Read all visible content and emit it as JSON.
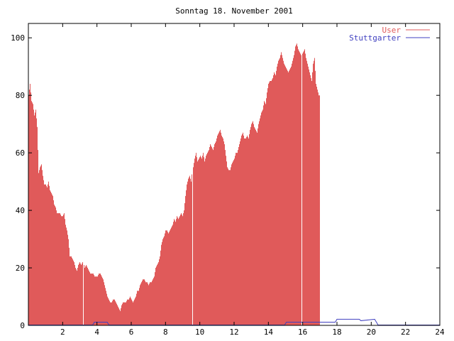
{
  "chart_data": {
    "type": "bar",
    "title": "Sonntag 18. November 2001",
    "xlabel": "",
    "ylabel": "",
    "xlim": [
      0,
      24
    ],
    "ylim": [
      0,
      105
    ],
    "x_ticks": [
      2,
      4,
      6,
      8,
      10,
      12,
      14,
      16,
      18,
      20,
      22,
      24
    ],
    "y_ticks": [
      0,
      20,
      40,
      60,
      80,
      100
    ],
    "grid": false,
    "legend_position": "top-right",
    "sample_interval_hours": 0.0833,
    "series": [
      {
        "name": "User",
        "style": "impulses",
        "color": "#e05a5a",
        "values": [
          80,
          84,
          78,
          77,
          73,
          75,
          69,
          53,
          55,
          56,
          52,
          49,
          49,
          48,
          50,
          47,
          46,
          45,
          42,
          41,
          39,
          39,
          39,
          38,
          38,
          39,
          35,
          33,
          30,
          24,
          24,
          23,
          22,
          20,
          19,
          21,
          22,
          21,
          22,
          20,
          21,
          20,
          19,
          18,
          18,
          18,
          17,
          17,
          17,
          18,
          18,
          17,
          16,
          14,
          12,
          10,
          9,
          8,
          8,
          9,
          9,
          8,
          7,
          6,
          5,
          7,
          8,
          8,
          8,
          9,
          9,
          10,
          9,
          8,
          9,
          10,
          12,
          12,
          14,
          15,
          16,
          16,
          15,
          15,
          14,
          15,
          15,
          16,
          17,
          20,
          21,
          22,
          24,
          28,
          30,
          31,
          33,
          33,
          32,
          33,
          34,
          35,
          37,
          36,
          38,
          37,
          38,
          39,
          38,
          40,
          45,
          49,
          51,
          52,
          50,
          55,
          58,
          60,
          57,
          58,
          59,
          58,
          60,
          57,
          59,
          60,
          61,
          63,
          62,
          61,
          63,
          64,
          66,
          67,
          68,
          66,
          65,
          63,
          59,
          55,
          54,
          54,
          56,
          57,
          58,
          60,
          60,
          62,
          64,
          66,
          67,
          65,
          65,
          66,
          65,
          68,
          70,
          71,
          69,
          68,
          67,
          70,
          72,
          74,
          75,
          78,
          77,
          81,
          84,
          85,
          85,
          86,
          88,
          87,
          90,
          92,
          93,
          95,
          93,
          91,
          90,
          89,
          88,
          89,
          90,
          92,
          94,
          97,
          98,
          96,
          95,
          94,
          95,
          96,
          93,
          91,
          89,
          87,
          85,
          91,
          93,
          84,
          82,
          80
        ]
      },
      {
        "name": "Stuttgarter",
        "style": "line",
        "color": "#4040c0",
        "points": [
          [
            0,
            0
          ],
          [
            3.75,
            0
          ],
          [
            3.85,
            1
          ],
          [
            4.6,
            1
          ],
          [
            4.7,
            0
          ],
          [
            14.95,
            0
          ],
          [
            15.05,
            1
          ],
          [
            17.9,
            1
          ],
          [
            18.0,
            2
          ],
          [
            19.3,
            2
          ],
          [
            19.4,
            1.5
          ],
          [
            20.2,
            2
          ],
          [
            20.4,
            0
          ],
          [
            24,
            0
          ]
        ]
      }
    ]
  }
}
